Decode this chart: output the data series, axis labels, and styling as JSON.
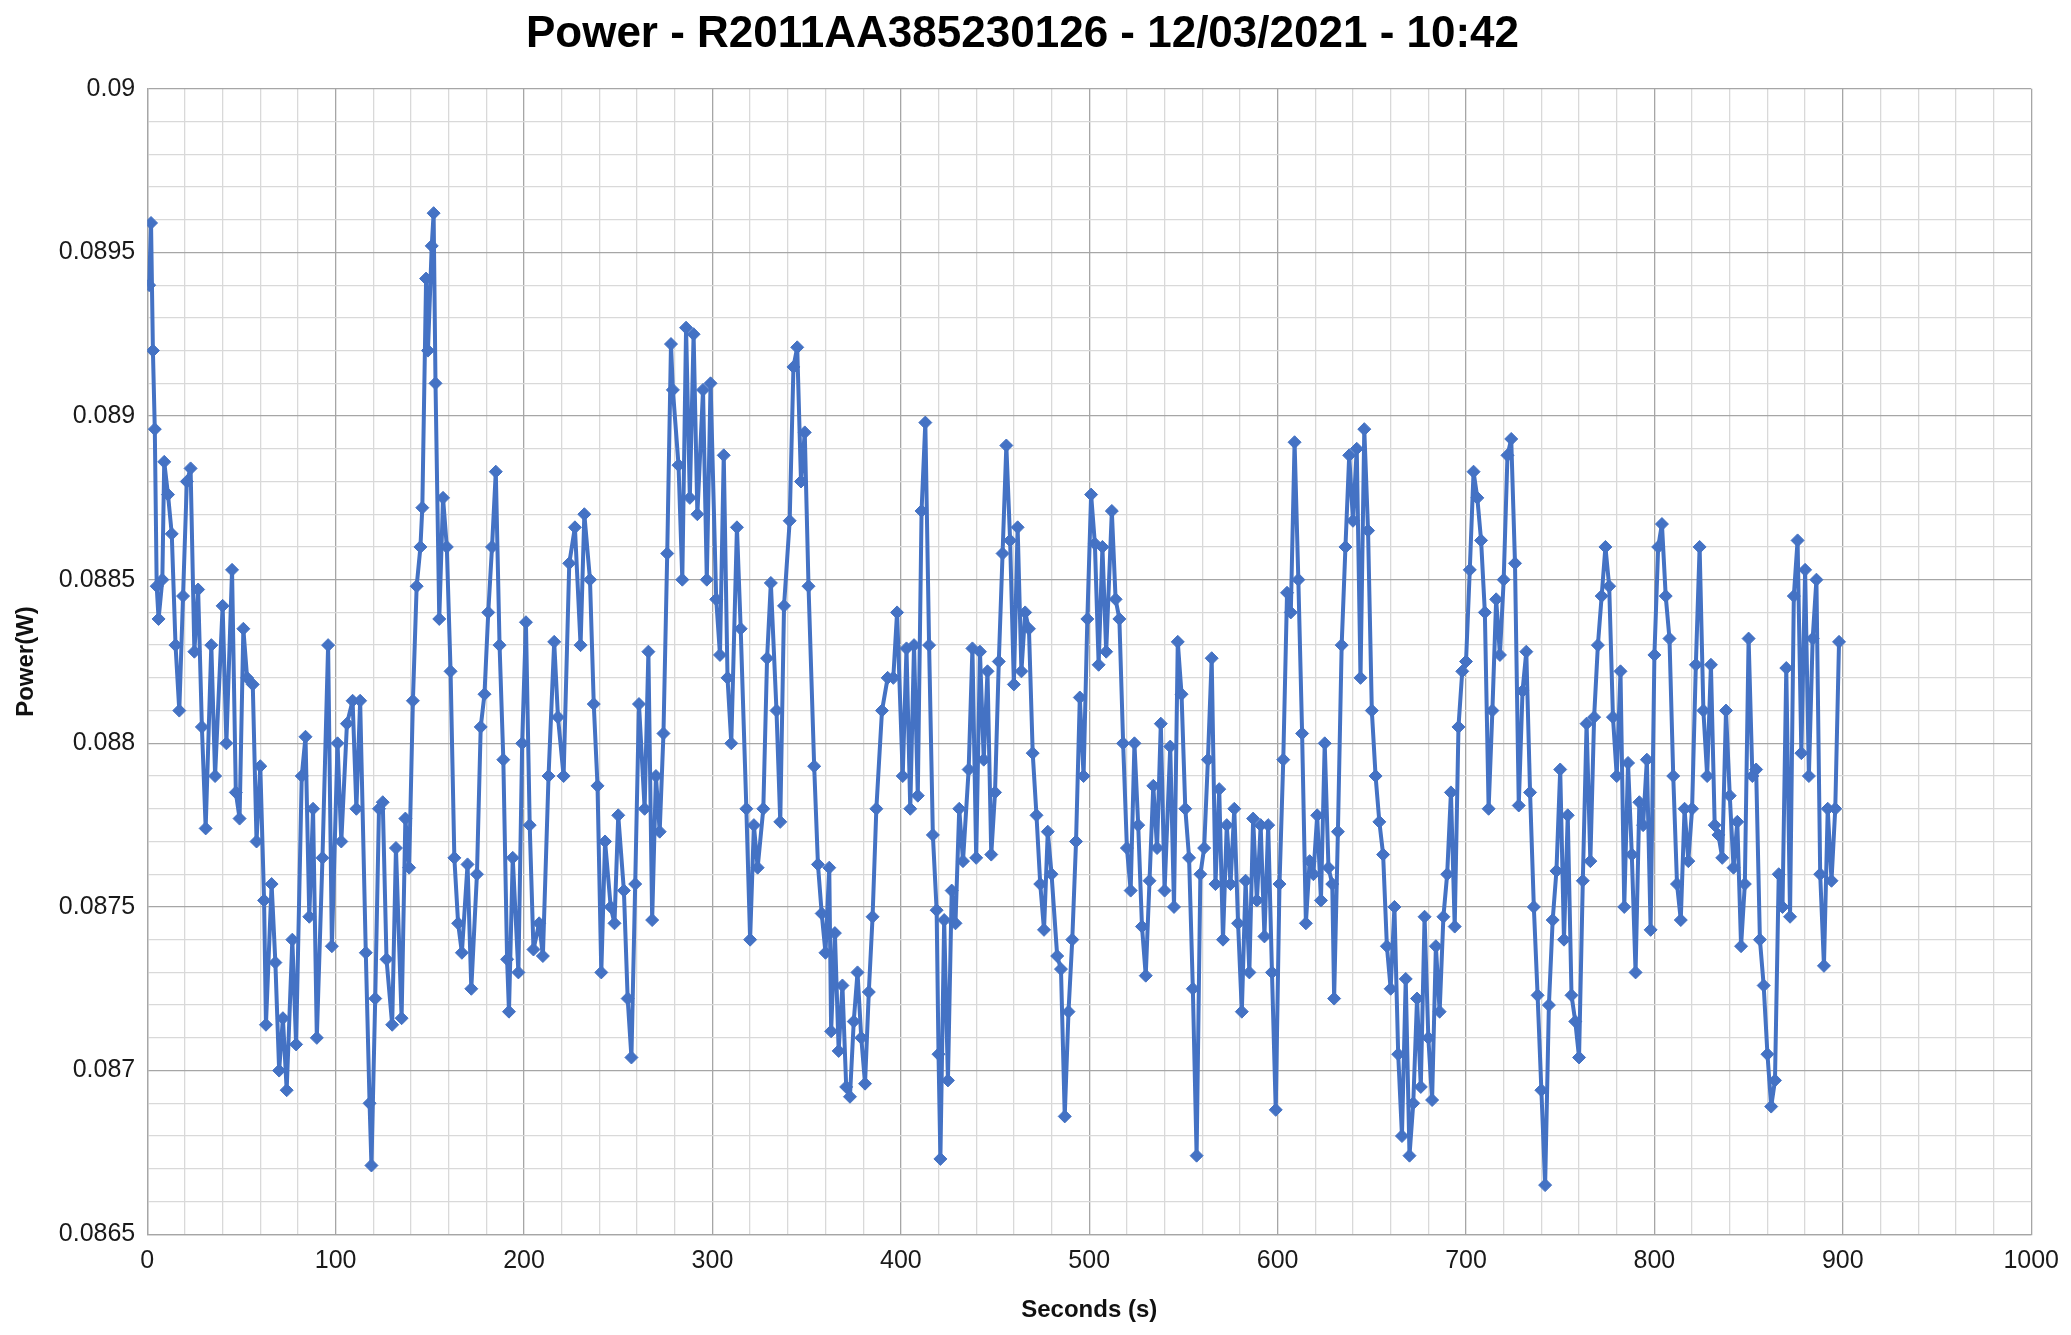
{
  "chart_data": {
    "type": "line",
    "title": "Power - R2011AA385230126 - 12/03/2021 - 10:42",
    "xlabel": "Seconds (s)",
    "ylabel": "Power(W)",
    "x": [
      1,
      2,
      3,
      4,
      5,
      6,
      8,
      9,
      11,
      13,
      15,
      17,
      19,
      21,
      23,
      25,
      27,
      29,
      31,
      34,
      36,
      40,
      42,
      45,
      47,
      49,
      51,
      53,
      56,
      58,
      60,
      62,
      63,
      66,
      68,
      70,
      72,
      74,
      77,
      79,
      82,
      84,
      86,
      88,
      90,
      93,
      96,
      98,
      101,
      103,
      106,
      109,
      111,
      113,
      116,
      118,
      119,
      121,
      123,
      125,
      127,
      130,
      132,
      135,
      137,
      139,
      141,
      143,
      145,
      146,
      148,
      149,
      151,
      152,
      153,
      155,
      157,
      159,
      161,
      163,
      165,
      167,
      170,
      172,
      175,
      177,
      179,
      181,
      183,
      185,
      187,
      189,
      191,
      192,
      194,
      197,
      199,
      201,
      203,
      205,
      208,
      210,
      213,
      216,
      218,
      221,
      224,
      227,
      230,
      232,
      235,
      237,
      239,
      241,
      243,
      246,
      248,
      250,
      253,
      255,
      257,
      259,
      261,
      264,
      266,
      268,
      270,
      272,
      274,
      276,
      278,
      279,
      282,
      284,
      286,
      288,
      290,
      292,
      295,
      297,
      299,
      302,
      304,
      306,
      308,
      310,
      313,
      315,
      318,
      320,
      322,
      324,
      327,
      329,
      331,
      334,
      336,
      338,
      341,
      343,
      345,
      347,
      349,
      351,
      354,
      356,
      358,
      360,
      362,
      363,
      365,
      367,
      369,
      371,
      373,
      375,
      377,
      379,
      381,
      383,
      385,
      387,
      390,
      393,
      396,
      398,
      401,
      403,
      405,
      407,
      409,
      411,
      413,
      415,
      417,
      419,
      420,
      421,
      423,
      425,
      427,
      429,
      431,
      433,
      436,
      438,
      440,
      442,
      444,
      446,
      448,
      450,
      452,
      454,
      456,
      458,
      460,
      462,
      464,
      466,
      468,
      470,
      472,
      474,
      476,
      478,
      480,
      483,
      485,
      487,
      489,
      491,
      493,
      495,
      497,
      499,
      501,
      503,
      505,
      507,
      509,
      512,
      514,
      516,
      518,
      520,
      522,
      524,
      526,
      528,
      530,
      532,
      534,
      536,
      538,
      540,
      543,
      545,
      547,
      549,
      551,
      553,
      555,
      557,
      559,
      561,
      563,
      565,
      567,
      569,
      571,
      573,
      575,
      577,
      579,
      581,
      583,
      585,
      587,
      589,
      591,
      593,
      595,
      597,
      599,
      601,
      603,
      605,
      607,
      609,
      611,
      613,
      615,
      617,
      619,
      621,
      623,
      625,
      627,
      629,
      630,
      632,
      634,
      636,
      638,
      640,
      642,
      644,
      646,
      648,
      650,
      652,
      654,
      656,
      658,
      660,
      662,
      664,
      666,
      668,
      670,
      672,
      674,
      676,
      678,
      680,
      682,
      684,
      686,
      688,
      690,
      692,
      694,
      696,
      698,
      700,
      702,
      704,
      706,
      708,
      710,
      712,
      714,
      716,
      718,
      720,
      722,
      724,
      726,
      728,
      730,
      732,
      734,
      736,
      738,
      740,
      742,
      744,
      746,
      748,
      750,
      752,
      754,
      756,
      758,
      760,
      762,
      764,
      766,
      768,
      770,
      772,
      774,
      776,
      778,
      780,
      782,
      784,
      786,
      788,
      790,
      792,
      794,
      796,
      798,
      800,
      802,
      804,
      806,
      808,
      810,
      812,
      814,
      816,
      818,
      820,
      822,
      824,
      826,
      828,
      830,
      832,
      834,
      836,
      838,
      840,
      842,
      844,
      846,
      848,
      850,
      852,
      854,
      856,
      858,
      860,
      862,
      864,
      866,
      868,
      870,
      872,
      874,
      876,
      878,
      880,
      882,
      884,
      886,
      888,
      890,
      892,
      894,
      896,
      898
    ],
    "series": [
      {
        "color": "#4472c4",
        "values": [
          0.0894,
          0.08959,
          0.0892,
          0.08896,
          0.08848,
          0.08838,
          0.0885,
          0.08886,
          0.08876,
          0.08864,
          0.0883,
          0.0881,
          0.08845,
          0.0888,
          0.08884,
          0.08828,
          0.08847,
          0.08805,
          0.08774,
          0.0883,
          0.0879,
          0.08842,
          0.088,
          0.08853,
          0.08785,
          0.08777,
          0.08835,
          0.0882,
          0.08818,
          0.0877,
          0.08793,
          0.08752,
          0.08714,
          0.08757,
          0.08733,
          0.087,
          0.08716,
          0.08694,
          0.0874,
          0.08708,
          0.0879,
          0.08802,
          0.08747,
          0.0878,
          0.0871,
          0.08765,
          0.0883,
          0.08738,
          0.088,
          0.0877,
          0.08806,
          0.08813,
          0.0878,
          0.08813,
          0.08736,
          0.0869,
          0.08671,
          0.08722,
          0.0878,
          0.08782,
          0.08734,
          0.08714,
          0.08768,
          0.08716,
          0.08777,
          0.08762,
          0.08813,
          0.08848,
          0.0886,
          0.08872,
          0.08942,
          0.0892,
          0.08952,
          0.08962,
          0.0891,
          0.08838,
          0.08875,
          0.0886,
          0.08822,
          0.08765,
          0.08745,
          0.08736,
          0.08763,
          0.08725,
          0.0876,
          0.08805,
          0.08815,
          0.0884,
          0.0886,
          0.08883,
          0.0883,
          0.08795,
          0.08734,
          0.08718,
          0.08765,
          0.0873,
          0.088,
          0.08837,
          0.08775,
          0.08737,
          0.08745,
          0.08735,
          0.0879,
          0.08831,
          0.08808,
          0.0879,
          0.08855,
          0.08866,
          0.0883,
          0.0887,
          0.0885,
          0.08812,
          0.08787,
          0.0873,
          0.0877,
          0.0875,
          0.08745,
          0.08778,
          0.08755,
          0.08722,
          0.08704,
          0.08757,
          0.08812,
          0.0878,
          0.08828,
          0.08746,
          0.0879,
          0.08773,
          0.08803,
          0.08858,
          0.08922,
          0.08908,
          0.08885,
          0.0885,
          0.08927,
          0.08875,
          0.08925,
          0.0887,
          0.08908,
          0.0885,
          0.0891,
          0.08844,
          0.08827,
          0.08888,
          0.0882,
          0.088,
          0.08866,
          0.08835,
          0.0878,
          0.0874,
          0.08775,
          0.08762,
          0.0878,
          0.08826,
          0.08849,
          0.0881,
          0.08776,
          0.08842,
          0.08868,
          0.08915,
          0.08921,
          0.0888,
          0.08895,
          0.08848,
          0.08793,
          0.08763,
          0.08748,
          0.08736,
          0.08762,
          0.08712,
          0.08742,
          0.08706,
          0.08726,
          0.08695,
          0.08692,
          0.08715,
          0.0873,
          0.0871,
          0.08696,
          0.08724,
          0.08747,
          0.0878,
          0.0881,
          0.0882,
          0.0882,
          0.0884,
          0.0879,
          0.08829,
          0.0878,
          0.0883,
          0.08784,
          0.08871,
          0.08898,
          0.0883,
          0.08772,
          0.08749,
          0.08705,
          0.08673,
          0.08746,
          0.08697,
          0.08755,
          0.08745,
          0.0878,
          0.08764,
          0.08792,
          0.08829,
          0.08765,
          0.08828,
          0.08795,
          0.08822,
          0.08766,
          0.08785,
          0.08825,
          0.08858,
          0.08891,
          0.08862,
          0.08818,
          0.08866,
          0.08822,
          0.0884,
          0.08835,
          0.08797,
          0.08778,
          0.08757,
          0.08743,
          0.08773,
          0.0876,
          0.08735,
          0.08731,
          0.08686,
          0.08718,
          0.0874,
          0.0877,
          0.08814,
          0.0879,
          0.08838,
          0.08876,
          0.08861,
          0.08824,
          0.0886,
          0.08828,
          0.08871,
          0.08844,
          0.08838,
          0.088,
          0.08768,
          0.08755,
          0.088,
          0.08775,
          0.08744,
          0.08729,
          0.08758,
          0.08787,
          0.08768,
          0.08806,
          0.08755,
          0.08799,
          0.0875,
          0.08831,
          0.08815,
          0.0878,
          0.08765,
          0.08725,
          0.08674,
          0.0876,
          0.08768,
          0.08795,
          0.08826,
          0.08757,
          0.08786,
          0.0874,
          0.08775,
          0.08757,
          0.0878,
          0.08745,
          0.08718,
          0.08758,
          0.0873,
          0.08777,
          0.08752,
          0.08775,
          0.08741,
          0.08775,
          0.0873,
          0.08688,
          0.08757,
          0.08795,
          0.08846,
          0.0884,
          0.08892,
          0.0885,
          0.08803,
          0.08745,
          0.08764,
          0.0876,
          0.08778,
          0.08752,
          0.088,
          0.08762,
          0.08757,
          0.08722,
          0.08773,
          0.0883,
          0.0886,
          0.08888,
          0.08868,
          0.0889,
          0.0882,
          0.08896,
          0.08865,
          0.0881,
          0.0879,
          0.08776,
          0.08766,
          0.08738,
          0.08725,
          0.0875,
          0.08705,
          0.0868,
          0.08728,
          0.08674,
          0.0869,
          0.08722,
          0.08695,
          0.08747,
          0.0871,
          0.08691,
          0.08738,
          0.08718,
          0.08747,
          0.0876,
          0.08785,
          0.08744,
          0.08805,
          0.08822,
          0.08825,
          0.08853,
          0.08883,
          0.08875,
          0.08862,
          0.0884,
          0.0878,
          0.0881,
          0.08844,
          0.08827,
          0.0885,
          0.08888,
          0.08893,
          0.08855,
          0.08781,
          0.08816,
          0.08828,
          0.08785,
          0.0875,
          0.08723,
          0.08694,
          0.08665,
          0.0872,
          0.08746,
          0.08761,
          0.08792,
          0.0874,
          0.08778,
          0.08723,
          0.08715,
          0.08704,
          0.08758,
          0.08806,
          0.08764,
          0.08808,
          0.0883,
          0.08845,
          0.0886,
          0.08848,
          0.08808,
          0.0879,
          0.08822,
          0.0875,
          0.08794,
          0.08766,
          0.0873,
          0.08782,
          0.08775,
          0.08795,
          0.08743,
          0.08827,
          0.0886,
          0.08867,
          0.08845,
          0.08832,
          0.0879,
          0.08757,
          0.08746,
          0.0878,
          0.08764,
          0.0878,
          0.08824,
          0.0886,
          0.0881,
          0.0879,
          0.08824,
          0.08775,
          0.08772,
          0.08765,
          0.0881,
          0.08784,
          0.08762,
          0.08776,
          0.08738,
          0.08757,
          0.08832,
          0.0879,
          0.08792,
          0.0874,
          0.08726,
          0.08705,
          0.08689,
          0.08697,
          0.0876,
          0.0875,
          0.08823,
          0.08747,
          0.08845,
          0.08862,
          0.08797,
          0.08853,
          0.0879,
          0.08832,
          0.0885,
          0.0876,
          0.08732,
          0.0878,
          0.08758,
          0.0878,
          0.08831
        ]
      }
    ],
    "xlim": [
      0,
      1000
    ],
    "xticks": [
      0,
      {
        "value": 20,
        "label": null
      },
      {
        "value": 40,
        "label": null
      },
      {
        "value": 60,
        "label": null
      },
      {
        "value": 80,
        "label": null
      },
      100,
      {
        "value": 120,
        "label": null
      },
      {
        "value": 140,
        "label": null
      },
      {
        "value": 160,
        "label": null
      },
      {
        "value": 180,
        "label": null
      },
      200,
      {
        "value": 220,
        "label": null
      },
      {
        "value": 240,
        "label": null
      },
      {
        "value": 260,
        "label": null
      },
      {
        "value": 280,
        "label": null
      },
      300,
      {
        "value": 320,
        "label": null
      },
      {
        "value": 340,
        "label": null
      },
      {
        "value": 360,
        "label": null
      },
      {
        "value": 380,
        "label": null
      },
      400,
      {
        "value": 420,
        "label": null
      },
      {
        "value": 440,
        "label": null
      },
      {
        "value": 460,
        "label": null
      },
      {
        "value": 480,
        "label": null
      },
      500,
      {
        "value": 520,
        "label": null
      },
      {
        "value": 540,
        "label": null
      },
      {
        "value": 560,
        "label": null
      },
      {
        "value": 580,
        "label": null
      },
      600,
      {
        "value": 620,
        "label": null
      },
      {
        "value": 640,
        "label": null
      },
      {
        "value": 660,
        "label": null
      },
      {
        "value": 680,
        "label": null
      },
      700,
      {
        "value": 720,
        "label": null
      },
      {
        "value": 740,
        "label": null
      },
      {
        "value": 760,
        "label": null
      },
      {
        "value": 780,
        "label": null
      },
      800,
      {
        "value": 820,
        "label": null
      },
      {
        "value": 840,
        "label": null
      },
      {
        "value": 860,
        "label": null
      },
      {
        "value": 880,
        "label": null
      },
      900,
      {
        "value": 920,
        "label": null
      },
      {
        "value": 940,
        "label": null
      },
      {
        "value": 960,
        "label": null
      },
      {
        "value": 980,
        "label": null
      },
      1000
    ],
    "ylim": [
      0.0865,
      0.09
    ],
    "yticks": [
      0.0865,
      {
        "value": 0.0866,
        "label": null
      },
      {
        "value": 0.0867,
        "label": null
      },
      {
        "value": 0.0868,
        "label": null
      },
      {
        "value": 0.0869,
        "label": null
      },
      0.087,
      {
        "value": 0.0871,
        "label": null
      },
      {
        "value": 0.0872,
        "label": null
      },
      {
        "value": 0.0873,
        "label": null
      },
      {
        "value": 0.0874,
        "label": null
      },
      0.0875,
      {
        "value": 0.0876,
        "label": null
      },
      {
        "value": 0.0877,
        "label": null
      },
      {
        "value": 0.0878,
        "label": null
      },
      {
        "value": 0.0879,
        "label": null
      },
      0.088,
      {
        "value": 0.0881,
        "label": null
      },
      {
        "value": 0.0882,
        "label": null
      },
      {
        "value": 0.0883,
        "label": null
      },
      {
        "value": 0.0884,
        "label": null
      },
      0.0885,
      {
        "value": 0.0886,
        "label": null
      },
      {
        "value": 0.0887,
        "label": null
      },
      {
        "value": 0.0888,
        "label": null
      },
      {
        "value": 0.0889,
        "label": null
      },
      0.089,
      {
        "value": 0.0891,
        "label": null
      },
      {
        "value": 0.0892,
        "label": null
      },
      {
        "value": 0.0893,
        "label": null
      },
      {
        "value": 0.0894,
        "label": null
      },
      0.0895,
      {
        "value": 0.0896,
        "label": null
      },
      {
        "value": 0.0897,
        "label": null
      },
      {
        "value": 0.0898,
        "label": null
      },
      {
        "value": 0.0899,
        "label": null
      },
      0.09
    ],
    "grid": true,
    "legend": false,
    "marker": "diamond",
    "line_style": "solid"
  }
}
